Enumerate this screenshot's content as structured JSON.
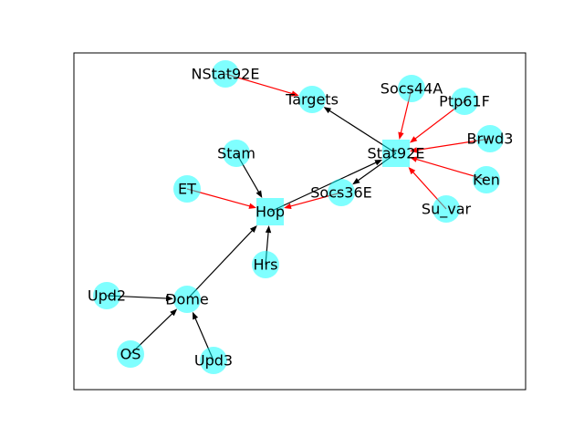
{
  "colors": {
    "node_fill": "#00ffff",
    "node_opacity": 0.5,
    "activation_edge": "#000000",
    "inhibition_edge": "#ff0000",
    "frame": "#000000",
    "background": "#ffffff"
  },
  "nodes": [
    {
      "id": "NStat92E",
      "label": "NStat92E",
      "shape": "circle"
    },
    {
      "id": "Targets",
      "label": "Targets",
      "shape": "circle"
    },
    {
      "id": "Socs44A",
      "label": "Socs44A",
      "shape": "circle"
    },
    {
      "id": "Ptp61F",
      "label": "Ptp61F",
      "shape": "circle"
    },
    {
      "id": "Brwd3",
      "label": "Brwd3",
      "shape": "circle"
    },
    {
      "id": "Stat92E",
      "label": "Stat92E",
      "shape": "square"
    },
    {
      "id": "Ken",
      "label": "Ken",
      "shape": "circle"
    },
    {
      "id": "Su_var",
      "label": "Su_var",
      "shape": "circle"
    },
    {
      "id": "Stam",
      "label": "Stam",
      "shape": "circle"
    },
    {
      "id": "ET",
      "label": "ET",
      "shape": "circle"
    },
    {
      "id": "Socs36E",
      "label": "Socs36E",
      "shape": "circle"
    },
    {
      "id": "Hop",
      "label": "Hop",
      "shape": "square"
    },
    {
      "id": "Hrs",
      "label": "Hrs",
      "shape": "circle"
    },
    {
      "id": "Upd2",
      "label": "Upd2",
      "shape": "circle"
    },
    {
      "id": "Dome",
      "label": "Dome",
      "shape": "circle"
    },
    {
      "id": "OS",
      "label": "OS",
      "shape": "circle"
    },
    {
      "id": "Upd3",
      "label": "Upd3",
      "shape": "circle"
    }
  ],
  "edges": [
    {
      "from": "NStat92E",
      "to": "Targets",
      "type": "inhibition"
    },
    {
      "from": "Stat92E",
      "to": "Targets",
      "type": "activation"
    },
    {
      "from": "Socs44A",
      "to": "Stat92E",
      "type": "inhibition"
    },
    {
      "from": "Ptp61F",
      "to": "Stat92E",
      "type": "inhibition"
    },
    {
      "from": "Brwd3",
      "to": "Stat92E",
      "type": "inhibition"
    },
    {
      "from": "Ken",
      "to": "Stat92E",
      "type": "inhibition"
    },
    {
      "from": "Su_var",
      "to": "Stat92E",
      "type": "inhibition"
    },
    {
      "from": "Stat92E",
      "to": "Socs36E",
      "type": "activation"
    },
    {
      "from": "Hop",
      "to": "Stat92E",
      "type": "activation"
    },
    {
      "from": "Socs36E",
      "to": "Hop",
      "type": "inhibition"
    },
    {
      "from": "ET",
      "to": "Hop",
      "type": "inhibition"
    },
    {
      "from": "Stam",
      "to": "Hop",
      "type": "activation"
    },
    {
      "from": "Hrs",
      "to": "Hop",
      "type": "activation"
    },
    {
      "from": "Dome",
      "to": "Hop",
      "type": "activation"
    },
    {
      "from": "Upd2",
      "to": "Dome",
      "type": "activation"
    },
    {
      "from": "OS",
      "to": "Dome",
      "type": "activation"
    },
    {
      "from": "Upd3",
      "to": "Dome",
      "type": "activation"
    }
  ]
}
